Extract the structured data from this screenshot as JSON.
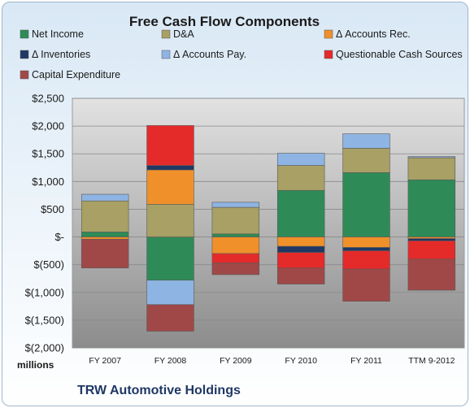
{
  "chart_data": {
    "type": "bar",
    "stacked": true,
    "title": "Free Cash Flow Components",
    "units_label": "millions",
    "company": "TRW Automotive Holdings",
    "categories": [
      "FY 2007",
      "FY 2008",
      "FY 2009",
      "FY 2010",
      "FY 2011",
      "TTM 9-2012"
    ],
    "ylim": [
      -2000,
      2500
    ],
    "yticks": [
      2500,
      2000,
      1500,
      1000,
      500,
      0,
      -500,
      -1000,
      -1500,
      -2000
    ],
    "ytick_labels": [
      "$2,500",
      "$2,000",
      "$1,500",
      "$1,000",
      "$500",
      "$-",
      "$(500)",
      "$(1,000)",
      "$(1,500)",
      "$(2,000)"
    ],
    "grid": true,
    "legend_position": "top",
    "series": [
      {
        "name": "Net Income",
        "color": "#2e8b57",
        "values": [
          90,
          -780,
          55,
          840,
          1160,
          1030
        ]
      },
      {
        "name": "D&A",
        "color": "#a8a064",
        "values": [
          560,
          590,
          480,
          450,
          440,
          400
        ]
      },
      {
        "name": "Δ Accounts Rec.",
        "color": "#f0902a",
        "values": [
          -40,
          620,
          -300,
          -170,
          -190,
          -30
        ]
      },
      {
        "name": "Δ Inventories",
        "color": "#1f3864",
        "values": [
          0,
          80,
          0,
          -110,
          -60,
          -40
        ]
      },
      {
        "name": "Δ Accounts Pay.",
        "color": "#8eb4e3",
        "values": [
          120,
          -440,
          90,
          220,
          260,
          20
        ]
      },
      {
        "name": "Questionable Cash Sources",
        "color": "#e52a2a",
        "values": [
          0,
          720,
          -170,
          -280,
          -330,
          -330
        ]
      },
      {
        "name": "Capital Expenditure",
        "color": "#a04848",
        "values": [
          -520,
          -480,
          -210,
          -290,
          -580,
          -560
        ]
      }
    ]
  }
}
